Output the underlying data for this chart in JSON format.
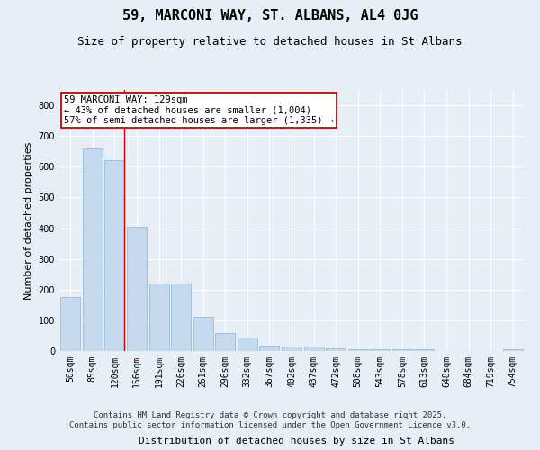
{
  "title": "59, MARCONI WAY, ST. ALBANS, AL4 0JG",
  "subtitle": "Size of property relative to detached houses in St Albans",
  "xlabel": "Distribution of detached houses by size in St Albans",
  "ylabel": "Number of detached properties",
  "footer_line1": "Contains HM Land Registry data © Crown copyright and database right 2025.",
  "footer_line2": "Contains public sector information licensed under the Open Government Licence v3.0.",
  "categories": [
    "50sqm",
    "85sqm",
    "120sqm",
    "156sqm",
    "191sqm",
    "226sqm",
    "261sqm",
    "296sqm",
    "332sqm",
    "367sqm",
    "402sqm",
    "437sqm",
    "472sqm",
    "508sqm",
    "543sqm",
    "578sqm",
    "613sqm",
    "648sqm",
    "684sqm",
    "719sqm",
    "754sqm"
  ],
  "values": [
    175,
    660,
    620,
    405,
    220,
    220,
    110,
    60,
    45,
    18,
    15,
    15,
    10,
    5,
    5,
    5,
    5,
    0,
    0,
    0,
    5
  ],
  "bar_color": "#c5d9ee",
  "bar_edge_color": "#8ab4d4",
  "vline_color": "#cc0000",
  "vline_index": 2,
  "annotation_text": "59 MARCONI WAY: 129sqm\n← 43% of detached houses are smaller (1,004)\n57% of semi-detached houses are larger (1,335) →",
  "annotation_box_color": "#ffffff",
  "annotation_border_color": "#cc0000",
  "ylim": [
    0,
    850
  ],
  "yticks": [
    0,
    100,
    200,
    300,
    400,
    500,
    600,
    700,
    800
  ],
  "background_color": "#e8eef5",
  "plot_bg_color": "#e8eef5",
  "title_fontsize": 11,
  "subtitle_fontsize": 9,
  "axis_label_fontsize": 8,
  "tick_fontsize": 7,
  "footer_fontsize": 6.5,
  "annotation_fontsize": 7.5
}
